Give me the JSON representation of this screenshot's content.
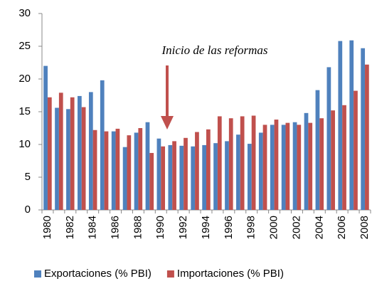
{
  "chart_data": {
    "type": "bar",
    "annotation": "Inicio de las reformas",
    "categories": [
      "1980",
      null,
      "1982",
      null,
      "1984",
      null,
      "1986",
      null,
      "1988",
      null,
      "1990",
      null,
      "1992",
      null,
      "1994",
      null,
      "1996",
      null,
      "1998",
      null,
      "2000",
      null,
      "2002",
      null,
      "2004",
      null,
      "2006",
      null,
      "2008"
    ],
    "series": [
      {
        "name": "Exportaciones (% PBI)",
        "color": "#4f81bd",
        "values": [
          22,
          15.6,
          15.4,
          17.4,
          18,
          19.8,
          12,
          9.6,
          11.8,
          13.4,
          10.9,
          9.9,
          9.8,
          9.7,
          9.9,
          10.2,
          10.5,
          11.5,
          10.1,
          11.8,
          13,
          13,
          13.4,
          14.8,
          18.3,
          21.8,
          25.8,
          25.9,
          24.7
        ]
      },
      {
        "name": "Importaciones (% PBI)",
        "color": "#c0504d",
        "values": [
          17.2,
          17.9,
          17.2,
          15.7,
          12.2,
          12,
          12.4,
          11.4,
          12.5,
          8.7,
          9.7,
          10.5,
          11,
          11.9,
          12.3,
          14.3,
          14,
          14.3,
          14.4,
          13,
          13.8,
          13.3,
          13,
          13.3,
          14,
          15.2,
          16,
          18.2,
          22.2
        ]
      }
    ],
    "ylim": [
      0,
      30
    ],
    "yticks": [
      0,
      5,
      10,
      15,
      20,
      25,
      30
    ],
    "grid": false,
    "legend": "bottom"
  }
}
